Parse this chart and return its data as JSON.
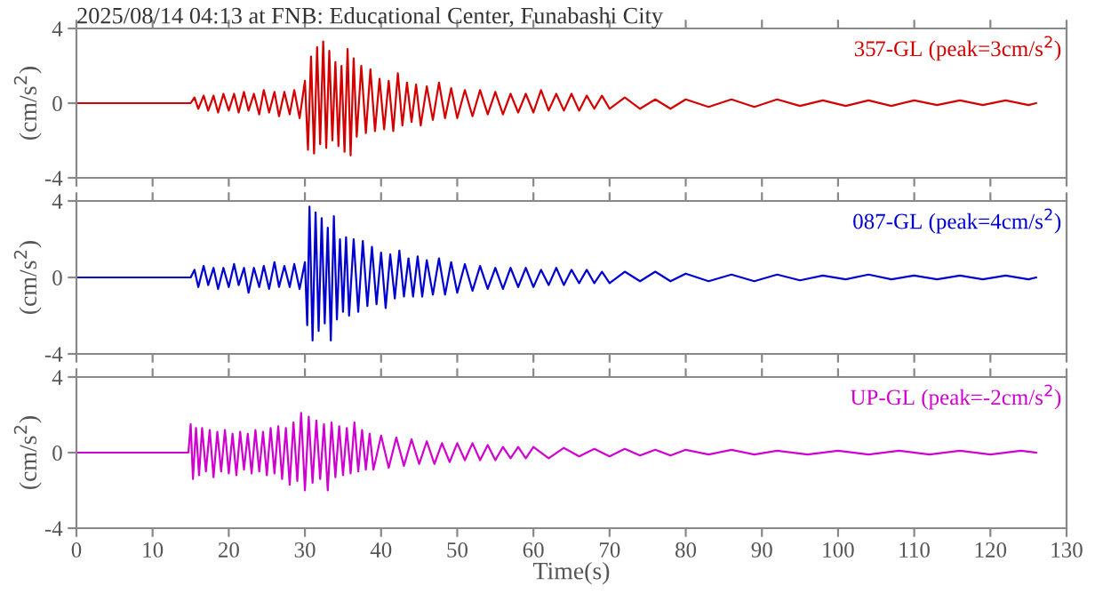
{
  "chart_data": [
    {
      "type": "line",
      "title": "2025/08/14 04:13 at FNB: Educational Center, Funabashi City",
      "ylabel": "(cm/s$^{2}$)",
      "xlim": [
        0,
        130
      ],
      "xticks": [
        0,
        10,
        20,
        30,
        40,
        50,
        60,
        70,
        80,
        90,
        100,
        110,
        120,
        130
      ],
      "ylim": [
        -4,
        4
      ],
      "yticks": [
        -4,
        0,
        4
      ],
      "tick_labels": "y",
      "grid": false,
      "legend": false,
      "series": [
        {
          "name": "357-GL (peak=3cm/s$^{2}$)",
          "color": "#d40000",
          "x": [
            0,
            15,
            15.5,
            16,
            16.7,
            17.3,
            18,
            18.6,
            19.3,
            20,
            20.7,
            21.3,
            22,
            22.6,
            23.3,
            24,
            24.6,
            25.3,
            26,
            26.6,
            27.3,
            28,
            28.6,
            29.3,
            30,
            30.4,
            30.8,
            31.2,
            31.6,
            32,
            32.4,
            32.8,
            33.2,
            33.6,
            34,
            34.4,
            34.8,
            35.2,
            35.6,
            36,
            36.4,
            36.8,
            37.4,
            38,
            38.6,
            39.2,
            39.8,
            40.4,
            41,
            41.6,
            42.2,
            42.8,
            43.4,
            44,
            44.6,
            45.2,
            46,
            46.8,
            47.6,
            48.4,
            49.2,
            50,
            51,
            52,
            53,
            54,
            55,
            56,
            57,
            58,
            59,
            60,
            61,
            62,
            63,
            64,
            65,
            66,
            67,
            68,
            69,
            70,
            72,
            74,
            76,
            78,
            80,
            83,
            86,
            89,
            92,
            95,
            98,
            101,
            104,
            107,
            110,
            113,
            116,
            119,
            122,
            125,
            126
          ],
          "values": [
            0,
            0,
            0.3,
            -0.3,
            0.4,
            -0.4,
            0.4,
            -0.5,
            0.5,
            -0.4,
            0.5,
            -0.5,
            0.6,
            -0.4,
            0.5,
            -0.6,
            0.7,
            -0.5,
            0.6,
            -0.7,
            0.6,
            -0.6,
            0.7,
            -0.8,
            1.2,
            -2.5,
            2.5,
            -2.7,
            3.0,
            -2.2,
            3.3,
            -2.4,
            2.8,
            -2.0,
            2.2,
            -2.3,
            2.0,
            -2.6,
            2.9,
            -2.8,
            2.4,
            -1.8,
            2.0,
            -1.6,
            1.8,
            -1.5,
            1.3,
            -1.4,
            1.2,
            -1.5,
            1.6,
            -1.2,
            1.1,
            -1.0,
            1.0,
            -1.2,
            0.9,
            -0.9,
            1.1,
            -0.8,
            0.8,
            -0.8,
            0.7,
            -0.7,
            0.7,
            -0.6,
            0.6,
            -0.6,
            0.5,
            -0.5,
            0.5,
            -0.5,
            0.7,
            -0.4,
            0.5,
            -0.4,
            0.5,
            -0.4,
            0.4,
            -0.3,
            0.4,
            -0.3,
            0.3,
            -0.3,
            0.2,
            -0.3,
            0.2,
            -0.2,
            0.2,
            -0.2,
            0.2,
            -0.15,
            0.15,
            -0.15,
            0.15,
            -0.15,
            0.15,
            -0.1,
            0.15,
            -0.1,
            0.15,
            -0.1,
            0
          ]
        }
      ]
    },
    {
      "type": "line",
      "ylabel": "(cm/s$^{2}$)",
      "xlim": [
        0,
        130
      ],
      "xticks": [
        0,
        10,
        20,
        30,
        40,
        50,
        60,
        70,
        80,
        90,
        100,
        110,
        120,
        130
      ],
      "ylim": [
        -4,
        4
      ],
      "yticks": [
        -4,
        0,
        4
      ],
      "tick_labels": "y",
      "grid": false,
      "legend": false,
      "series": [
        {
          "name": "087-GL (peak=4cm/s$^{2}$)",
          "color": "#0000d0",
          "x": [
            0,
            15,
            15.5,
            16,
            16.7,
            17.3,
            18,
            18.6,
            19.3,
            20,
            20.7,
            21.3,
            22,
            22.6,
            23.3,
            24,
            24.6,
            25.3,
            26,
            26.6,
            27.3,
            28,
            28.6,
            29.3,
            30,
            30.3,
            30.6,
            31,
            31.4,
            31.8,
            32.2,
            32.6,
            33,
            33.4,
            33.8,
            34.2,
            34.6,
            35,
            35.4,
            35.8,
            36.4,
            37,
            37.6,
            38.2,
            38.8,
            39.4,
            40,
            40.6,
            41.2,
            41.8,
            42.4,
            43,
            43.6,
            44.2,
            44.8,
            45.4,
            46,
            46.8,
            47.6,
            48.4,
            49.2,
            50,
            51,
            52,
            53,
            54,
            55,
            56,
            57,
            58,
            59,
            60,
            61,
            62,
            63,
            64,
            65,
            66,
            67,
            68,
            69,
            70,
            72,
            74,
            76,
            78,
            80,
            83,
            86,
            89,
            92,
            95,
            98,
            101,
            104,
            107,
            110,
            113,
            116,
            119,
            122,
            125,
            126
          ],
          "values": [
            0,
            0,
            0.4,
            -0.5,
            0.6,
            -0.4,
            0.5,
            -0.6,
            0.5,
            -0.5,
            0.7,
            -0.4,
            0.5,
            -0.8,
            0.5,
            -0.5,
            0.6,
            -0.6,
            0.8,
            -0.5,
            0.6,
            -0.5,
            0.7,
            -0.6,
            0.8,
            -2.5,
            3.7,
            -3.3,
            3.4,
            -2.8,
            3.1,
            -2.4,
            2.6,
            -3.3,
            3.2,
            -2.2,
            2.0,
            -1.8,
            2.1,
            -2.0,
            2.0,
            -1.8,
            1.9,
            -1.5,
            1.6,
            -1.4,
            1.3,
            -1.6,
            1.2,
            -1.1,
            1.4,
            -1.0,
            1.0,
            -1.0,
            1.1,
            -1.0,
            0.9,
            -0.9,
            1.0,
            -0.9,
            0.8,
            -0.8,
            0.7,
            -0.7,
            0.6,
            -0.6,
            0.5,
            -0.6,
            0.5,
            -0.5,
            0.5,
            -0.5,
            0.4,
            -0.4,
            0.5,
            -0.4,
            0.4,
            -0.3,
            0.4,
            -0.3,
            0.3,
            -0.3,
            0.3,
            -0.2,
            0.3,
            -0.2,
            0.2,
            -0.2,
            0.15,
            -0.2,
            0.15,
            -0.15,
            0.1,
            -0.1,
            0.15,
            -0.1,
            0.1,
            -0.1,
            0.1,
            -0.1,
            0.1,
            -0.1,
            0
          ]
        }
      ]
    },
    {
      "type": "line",
      "xlabel": "Time(s)",
      "ylabel": "(cm/s$^{2}$)",
      "xlim": [
        0,
        130
      ],
      "xticks": [
        0,
        10,
        20,
        30,
        40,
        50,
        60,
        70,
        80,
        90,
        100,
        110,
        120,
        130
      ],
      "ylim": [
        -4,
        4
      ],
      "yticks": [
        -4,
        0,
        4
      ],
      "grid": false,
      "legend": false,
      "series": [
        {
          "name": "UP-GL (peak=-2cm/s$^{2}$)",
          "color": "#d000d0",
          "x": [
            0,
            14.7,
            15,
            15.3,
            15.7,
            16.1,
            16.5,
            17,
            17.5,
            18,
            18.5,
            19,
            19.5,
            20,
            20.5,
            21,
            21.5,
            22,
            22.5,
            23,
            23.5,
            24,
            24.5,
            25,
            25.5,
            26,
            26.5,
            27,
            27.5,
            28,
            28.5,
            29,
            29.5,
            30,
            30.5,
            31,
            31.5,
            32,
            32.5,
            33,
            33.5,
            34,
            34.5,
            35,
            35.5,
            36,
            36.5,
            37,
            37.5,
            38,
            38.5,
            39,
            40,
            41,
            42,
            43,
            44,
            45,
            46,
            47,
            48,
            49,
            50,
            51,
            52,
            53,
            54,
            55,
            56,
            57,
            58,
            59,
            60,
            62,
            64,
            66,
            68,
            70,
            72,
            74,
            76,
            78,
            80,
            83,
            86,
            89,
            92,
            96,
            100,
            104,
            108,
            112,
            116,
            120,
            124,
            126
          ],
          "values": [
            0,
            0,
            1.5,
            -1.4,
            1.3,
            -1.2,
            1.3,
            -1.0,
            1.2,
            -1.3,
            1.1,
            -1.0,
            1.2,
            -1.1,
            1.0,
            -1.2,
            1.1,
            -0.9,
            1.0,
            -1.1,
            1.2,
            -1.0,
            1.1,
            -1.2,
            1.3,
            -1.1,
            1.4,
            -1.4,
            1.3,
            -1.7,
            1.6,
            -1.5,
            2.1,
            -2.0,
            1.9,
            -1.6,
            1.7,
            -1.4,
            1.5,
            -2.0,
            1.6,
            -1.3,
            1.4,
            -1.2,
            1.3,
            -1.1,
            1.6,
            -1.0,
            1.2,
            -0.9,
            1.0,
            -0.9,
            0.9,
            -0.8,
            0.8,
            -0.7,
            0.7,
            -0.6,
            0.6,
            -0.6,
            0.5,
            -0.5,
            0.5,
            -0.4,
            0.5,
            -0.4,
            0.4,
            -0.4,
            0.3,
            -0.3,
            0.3,
            -0.3,
            0.3,
            -0.3,
            0.25,
            -0.2,
            0.2,
            -0.2,
            0.2,
            -0.15,
            0.15,
            -0.15,
            0.15,
            -0.1,
            0.15,
            -0.1,
            0.1,
            -0.1,
            0.1,
            -0.1,
            0.1,
            -0.1,
            0.1,
            -0.1,
            0.1,
            0
          ]
        }
      ]
    }
  ]
}
